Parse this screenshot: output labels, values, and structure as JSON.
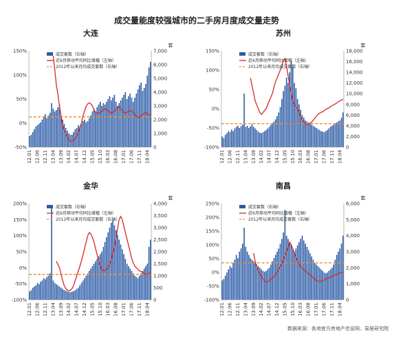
{
  "title": "成交量能度较强城市的二手房月度成交量走势",
  "source": "数据来源：各地官方房地产信息网、易居研究院",
  "legend_labels": [
    "成交套数（右轴）",
    "近6月移动平均同比增幅（左轴）",
    "2012年以来月均成交套数（右轴）"
  ],
  "colors": {
    "bars": "#2a5aa6",
    "line": "#d62728",
    "avg": "#f28c28",
    "axis": "#888888"
  },
  "x_tick_labels": [
    "12.01",
    "12.06",
    "12.11",
    "13.04",
    "13.09",
    "14.02",
    "14.07",
    "14.12",
    "15.05",
    "15.10",
    "16.03",
    "16.08",
    "17.01",
    "17.06",
    "17.11",
    "18.04"
  ],
  "chart_data": [
    {
      "type": "bar+line",
      "title": "大连",
      "right_unit": "套",
      "left_ticks": [
        "150%",
        "100%",
        "50%",
        "0%",
        "-50%"
      ],
      "right_ticks": [
        "7,000",
        "6,000",
        "5,000",
        "4,000",
        "3,000",
        "2,000",
        "1,000",
        "0"
      ],
      "ylim_left": [
        -50,
        150
      ],
      "ylim_right": [
        0,
        7000
      ],
      "avg": 2200,
      "bar_values": [
        800,
        900,
        1100,
        1300,
        1500,
        1600,
        1700,
        1800,
        2000,
        2200,
        2400,
        2100,
        2300,
        2500,
        3200,
        2800,
        2600,
        2700,
        2900,
        3100,
        2300,
        2000,
        1700,
        1400,
        1200,
        1000,
        900,
        900,
        1100,
        1300,
        1400,
        1600,
        1500,
        1700,
        1900,
        2000,
        1800,
        1900,
        2100,
        2300,
        2600,
        2800,
        2600,
        2900,
        3100,
        3300,
        3000,
        3200,
        3100,
        3300,
        3500,
        3700,
        3400,
        3600,
        3800,
        3300,
        3000,
        3200,
        3400,
        3600,
        3800,
        4000,
        3500,
        3700,
        3900,
        3600,
        3300,
        3600,
        3900,
        4200,
        4500,
        4700,
        4100,
        4300,
        4600,
        5200,
        5800,
        6200
      ],
      "line_values": [
        null,
        null,
        null,
        null,
        null,
        null,
        null,
        null,
        null,
        null,
        null,
        null,
        null,
        null,
        null,
        140,
        110,
        80,
        60,
        35,
        15,
        -5,
        -15,
        -20,
        -30,
        -35,
        -38,
        -38,
        -36,
        -32,
        -28,
        -20,
        -10,
        0,
        15,
        25,
        35,
        40,
        42,
        40,
        35,
        28,
        22,
        20,
        20,
        22,
        25,
        28,
        30,
        28,
        25,
        22,
        20,
        22,
        25,
        28,
        32,
        35,
        30,
        25,
        22,
        20,
        22,
        24,
        26,
        25,
        22,
        18,
        14,
        12,
        12,
        14,
        18,
        20,
        22,
        18,
        16,
        18
      ]
    },
    {
      "type": "bar+line",
      "title": "苏州",
      "right_unit": "套",
      "left_ticks": [
        "150%",
        "100%",
        "50%",
        "0%",
        "-50%",
        "-100%"
      ],
      "right_ticks": [
        "18,000",
        "16,000",
        "14,000",
        "12,000",
        "10,000",
        "8,000",
        "6,000",
        "4,000",
        "2,000",
        "0"
      ],
      "ylim_left": [
        -100,
        150
      ],
      "ylim_right": [
        0,
        18000
      ],
      "avg": 4400,
      "bar_values": [
        2000,
        1700,
        2300,
        2600,
        3000,
        2800,
        3300,
        3000,
        3500,
        3800,
        4000,
        3600,
        3900,
        4200,
        10000,
        3800,
        4000,
        3600,
        3900,
        4300,
        3800,
        3500,
        3200,
        2900,
        2700,
        2600,
        2800,
        3000,
        3200,
        3500,
        3800,
        4200,
        4500,
        4800,
        5200,
        5800,
        6500,
        7500,
        9000,
        10500,
        11500,
        13000,
        12000,
        14000,
        16000,
        15000,
        12000,
        11000,
        9000,
        8000,
        7000,
        6000,
        5500,
        5000,
        4800,
        4600,
        4400,
        4200,
        4000,
        3800,
        3600,
        3400,
        3200,
        3000,
        2900,
        2800,
        3000,
        3200,
        3500,
        3800,
        4000,
        4200,
        4400,
        4600,
        4800,
        5000,
        5500,
        6500
      ],
      "line_values": [
        null,
        null,
        null,
        null,
        null,
        null,
        null,
        null,
        null,
        null,
        null,
        null,
        null,
        null,
        null,
        null,
        null,
        null,
        80,
        60,
        40,
        20,
        10,
        0,
        -10,
        -15,
        -10,
        -5,
        0,
        10,
        20,
        30,
        40,
        55,
        70,
        80,
        90,
        100,
        110,
        125,
        130,
        110,
        85,
        60,
        40,
        20,
        10,
        5,
        0,
        -10,
        -20,
        -30,
        -35,
        -40,
        -42,
        -40,
        -38,
        -35,
        -30,
        -25,
        -20,
        -15,
        -12,
        -10,
        -8,
        -5,
        -2,
        0,
        2,
        5,
        8,
        10,
        12,
        15,
        18,
        20,
        22,
        25
      ]
    },
    {
      "type": "bar+line",
      "title": "金华",
      "right_unit": "套",
      "left_ticks": [
        "200%",
        "150%",
        "100%",
        "50%",
        "0%",
        "-50%",
        "-100%"
      ],
      "right_ticks": [
        "4,000",
        "3,500",
        "3,000",
        "2,500",
        "2,000",
        "1,500",
        "1,000",
        "500",
        "0"
      ],
      "ylim_left": [
        -100,
        200
      ],
      "ylim_right": [
        0,
        4000
      ],
      "avg": 1050,
      "bar_values": [
        350,
        400,
        500,
        550,
        600,
        700,
        650,
        750,
        800,
        900,
        850,
        950,
        1000,
        1100,
        3900,
        800,
        700,
        650,
        600,
        550,
        500,
        450,
        400,
        380,
        350,
        330,
        320,
        340,
        360,
        400,
        450,
        500,
        600,
        700,
        800,
        900,
        1000,
        1100,
        1200,
        1300,
        1400,
        1500,
        1600,
        1700,
        1800,
        1900,
        2000,
        2200,
        2400,
        2600,
        2800,
        3000,
        3200,
        3300,
        3100,
        2900,
        2700,
        2500,
        2300,
        2100,
        1900,
        1700,
        1500,
        1400,
        1300,
        1200,
        1100,
        1000,
        950,
        900,
        1000,
        1100,
        1200,
        1300,
        1400,
        1500,
        2200,
        2500
      ],
      "line_values": [
        null,
        null,
        null,
        null,
        null,
        null,
        null,
        null,
        null,
        null,
        null,
        null,
        null,
        null,
        null,
        null,
        null,
        20,
        10,
        0,
        -20,
        -40,
        -55,
        -65,
        -70,
        -72,
        -70,
        -65,
        -55,
        -40,
        -25,
        -10,
        5,
        20,
        40,
        60,
        80,
        100,
        110,
        105,
        95,
        80,
        60,
        40,
        20,
        5,
        -5,
        -10,
        -8,
        -5,
        0,
        10,
        25,
        45,
        65,
        90,
        120,
        150,
        160,
        150,
        130,
        110,
        90,
        70,
        50,
        30,
        15,
        5,
        0,
        -5,
        -10,
        -12,
        -15,
        -18,
        -20,
        -20,
        -18,
        -15
      ]
    },
    {
      "type": "bar+line",
      "title": "南昌",
      "right_unit": "套",
      "left_ticks": [
        "250%",
        "200%",
        "150%",
        "100%",
        "50%",
        "0%",
        "-50%",
        "-100%"
      ],
      "right_ticks": [
        "6,000",
        "5,000",
        "4,000",
        "3,000",
        "2,000",
        "1,000",
        "0"
      ],
      "ylim_left": [
        -100,
        250
      ],
      "ylim_right": [
        0,
        6000
      ],
      "avg": 2300,
      "bar_values": [
        1200,
        1300,
        1500,
        1700,
        1900,
        2100,
        2000,
        2300,
        2500,
        2800,
        2600,
        3000,
        3200,
        3500,
        4500,
        3300,
        3000,
        2800,
        2600,
        2500,
        2400,
        2300,
        2200,
        2100,
        2000,
        1900,
        1800,
        1750,
        1800,
        1900,
        2000,
        2200,
        2400,
        2600,
        2800,
        3000,
        3200,
        3500,
        3800,
        4200,
        5600,
        4000,
        3800,
        3600,
        3400,
        3200,
        3000,
        3200,
        3400,
        3600,
        3800,
        4000,
        3700,
        3500,
        3300,
        3100,
        2900,
        2700,
        2500,
        2300,
        2200,
        2100,
        2000,
        1900,
        1800,
        1700,
        1650,
        1700,
        1800,
        1900,
        2000,
        2200,
        2500,
        2800,
        3000,
        3200,
        3500,
        4000
      ],
      "line_values": [
        null,
        null,
        null,
        null,
        null,
        null,
        null,
        null,
        null,
        null,
        null,
        null,
        null,
        null,
        null,
        null,
        null,
        null,
        null,
        null,
        70,
        40,
        20,
        5,
        -5,
        -15,
        -25,
        -30,
        -35,
        -35,
        -30,
        -25,
        -20,
        -15,
        -10,
        0,
        10,
        20,
        30,
        45,
        60,
        75,
        90,
        110,
        100,
        85,
        70,
        55,
        40,
        30,
        20,
        15,
        10,
        5,
        0,
        -5,
        -10,
        -15,
        -20,
        -25,
        -30,
        -32,
        -33,
        -33,
        -30,
        -28,
        -25,
        -22,
        -20,
        -18,
        -15,
        -12,
        -10,
        -8,
        -5,
        -2,
        0,
        0
      ]
    }
  ]
}
